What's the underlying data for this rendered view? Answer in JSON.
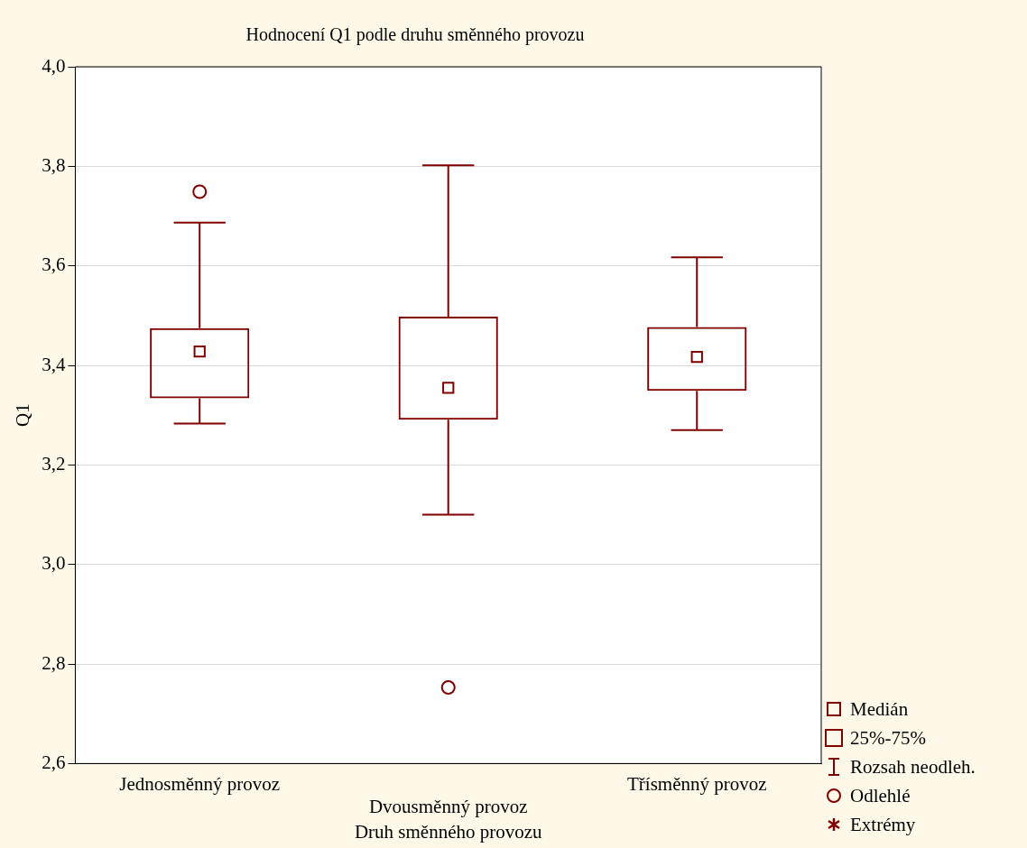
{
  "chart_data": {
    "type": "box",
    "title": "Hodnocení Q1 podle druhu směnného provozu",
    "xlabel": "Druh směnného provozu",
    "ylabel": "Q1",
    "categories": [
      "Jednosměnný provoz",
      "Dvousměnný provoz",
      "Třísměnný provoz"
    ],
    "series": [
      {
        "color": "#800000",
        "boxes": [
          {
            "low": 3.283,
            "q1": 3.334,
            "median": 3.428,
            "q3": 3.475,
            "high": 3.687,
            "outliers": [
              3.749
            ]
          },
          {
            "low": 3.1,
            "q1": 3.291,
            "median": 3.355,
            "q3": 3.498,
            "high": 3.802,
            "outliers": [
              2.753
            ]
          },
          {
            "low": 3.27,
            "q1": 3.349,
            "median": 3.417,
            "q3": 3.477,
            "high": 3.617
          }
        ]
      }
    ],
    "ylim": [
      2.6,
      4.0
    ],
    "yticks": [
      {
        "value": 2.6,
        "label": "2,6"
      },
      {
        "value": 2.8,
        "label": "2,8"
      },
      {
        "value": 3.0,
        "label": "3,0"
      },
      {
        "value": 3.2,
        "label": "3,2"
      },
      {
        "value": 3.4,
        "label": "3,4"
      },
      {
        "value": 3.6,
        "label": "3,6"
      },
      {
        "value": 3.8,
        "label": "3,8"
      },
      {
        "value": 4.0,
        "label": "4,0"
      }
    ],
    "grid": "y",
    "annotations": [
      "Medián",
      "25%-75%",
      "Rozsah neodleh.",
      "Odlehlé",
      "Extrémy"
    ]
  }
}
